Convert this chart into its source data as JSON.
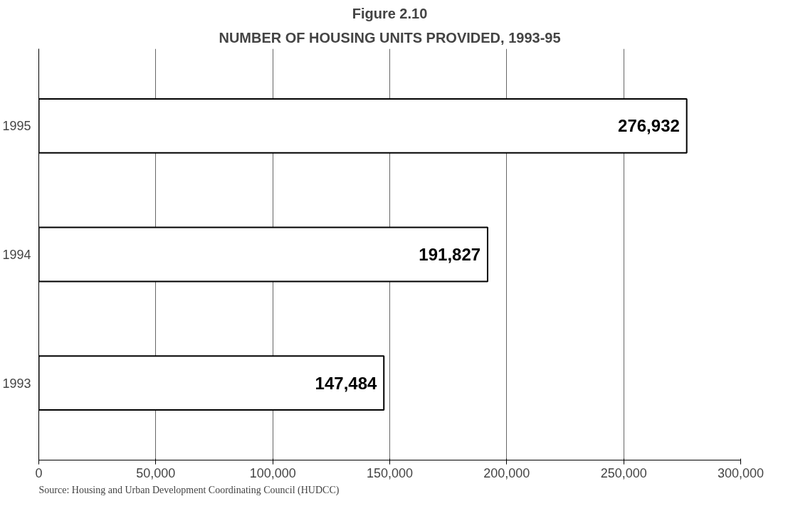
{
  "chart_data": {
    "type": "bar",
    "orientation": "horizontal",
    "title": "Figure 2.10",
    "subtitle": "NUMBER OF HOUSING UNITS PROVIDED, 1993-95",
    "categories": [
      "1995",
      "1994",
      "1993"
    ],
    "values": [
      276932,
      191827,
      147484
    ],
    "color": "#ffffff",
    "xlim": [
      0,
      300000
    ],
    "xticks": [
      {
        "value": 0,
        "label": "0"
      },
      {
        "value": 50000,
        "label": "50,000"
      },
      {
        "value": 100000,
        "label": "100,000"
      },
      {
        "value": 150000,
        "label": "150,000"
      },
      {
        "value": 200000,
        "label": "200,000"
      },
      {
        "value": 250000,
        "label": "250,000"
      },
      {
        "value": 300000,
        "label": "300,000"
      }
    ],
    "grid": "x",
    "value_labels": [
      "276,932",
      "191,827",
      "147,484"
    ],
    "annotations": [
      "Source: Housing and Urban Development Coordinating Council (HUDCC)"
    ]
  }
}
